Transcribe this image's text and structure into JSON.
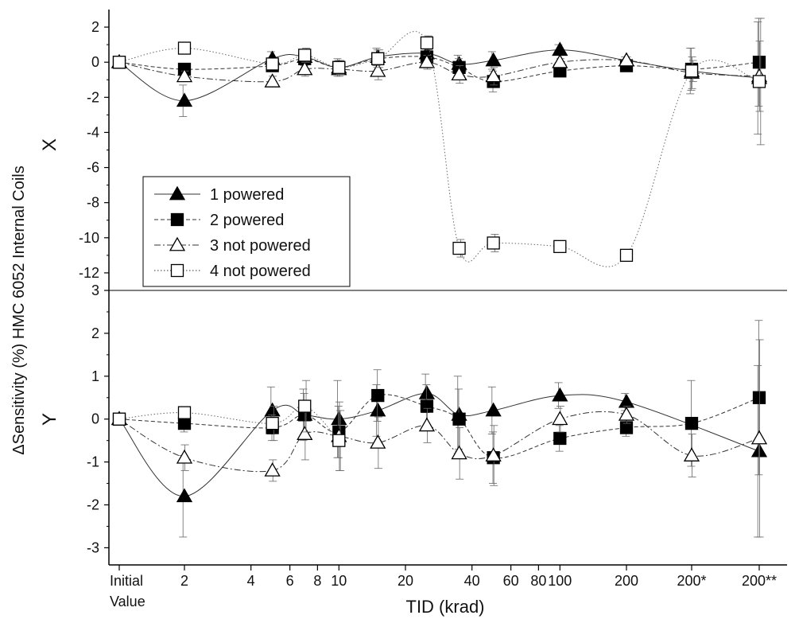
{
  "chart_data": {
    "type": "scatter",
    "title": "",
    "ylabel": "ΔSensitivity (%) HMC 6052 Internal Coils",
    "xlabel": "TID (krad)",
    "x_categories_top": [
      "Initial",
      "2",
      "4",
      "6",
      "8",
      "10",
      "20",
      "40",
      "60",
      "80",
      "100",
      "200",
      "200*",
      "200**"
    ],
    "x_category_bottom": "Value",
    "panels": [
      {
        "name": "X",
        "ylim": [
          -13,
          3
        ],
        "yticks": [
          2,
          0,
          -2,
          -4,
          -6,
          -8,
          -10,
          -12
        ],
        "ytick_labels": [
          "2",
          "0",
          "-2",
          "-4",
          "-6",
          "-8",
          "-10",
          "-12"
        ],
        "series": [
          {
            "name": "1 powered",
            "marker": "filled-triangle",
            "line": "solid",
            "points": [
              {
                "x": "Initial",
                "y": 0.0,
                "err": 0.1
              },
              {
                "x": "2",
                "y": -2.2,
                "err": 0.9
              },
              {
                "x": "5",
                "y": 0.2,
                "err": 0.4
              },
              {
                "x": "7",
                "y": 0.3,
                "err": 0.4
              },
              {
                "x": "10",
                "y": -0.3,
                "err": 0.5
              },
              {
                "x": "15",
                "y": 0.3,
                "err": 0.5
              },
              {
                "x": "25",
                "y": 0.5,
                "err": 0.5
              },
              {
                "x": "35",
                "y": -0.1,
                "err": 0.5
              },
              {
                "x": "50",
                "y": 0.1,
                "err": 0.5
              },
              {
                "x": "100",
                "y": 0.7,
                "err": 0.3
              },
              {
                "x": "200",
                "y": 0.1,
                "err": 0.2
              },
              {
                "x": "200*",
                "y": -0.5,
                "err": 1.3
              },
              {
                "x": "200**",
                "y": -0.9,
                "err": 3.2
              }
            ]
          },
          {
            "name": "2 powered",
            "marker": "filled-square",
            "line": "dashed",
            "points": [
              {
                "x": "Initial",
                "y": 0.0,
                "err": 0.1
              },
              {
                "x": "2",
                "y": -0.4,
                "err": 0.3
              },
              {
                "x": "5",
                "y": -0.2,
                "err": 0.3
              },
              {
                "x": "7",
                "y": 0.2,
                "err": 0.4
              },
              {
                "x": "10",
                "y": -0.3,
                "err": 0.4
              },
              {
                "x": "15",
                "y": 0.2,
                "err": 0.5
              },
              {
                "x": "25",
                "y": 0.3,
                "err": 0.5
              },
              {
                "x": "35",
                "y": -0.3,
                "err": 0.5
              },
              {
                "x": "50",
                "y": -1.1,
                "err": 0.6
              },
              {
                "x": "100",
                "y": -0.5,
                "err": 0.2
              },
              {
                "x": "200",
                "y": -0.2,
                "err": 0.2
              },
              {
                "x": "200*",
                "y": -0.4,
                "err": 1.2
              },
              {
                "x": "200**",
                "y": 0.0,
                "err": 2.5
              }
            ]
          },
          {
            "name": "3 not powered",
            "marker": "open-triangle",
            "line": "dashdot",
            "points": [
              {
                "x": "Initial",
                "y": 0.0,
                "err": 0.1
              },
              {
                "x": "2",
                "y": -0.8,
                "err": 0.3
              },
              {
                "x": "5",
                "y": -1.1,
                "err": 0.3
              },
              {
                "x": "7",
                "y": -0.4,
                "err": 0.4
              },
              {
                "x": "10",
                "y": -0.4,
                "err": 0.4
              },
              {
                "x": "15",
                "y": -0.5,
                "err": 0.5
              },
              {
                "x": "25",
                "y": 0.0,
                "err": 0.4
              },
              {
                "x": "35",
                "y": -0.7,
                "err": 0.5
              },
              {
                "x": "50",
                "y": -0.8,
                "err": 0.5
              },
              {
                "x": "100",
                "y": 0.0,
                "err": 0.2
              },
              {
                "x": "200",
                "y": 0.1,
                "err": 0.2
              },
              {
                "x": "200*",
                "y": -0.6,
                "err": 0.9
              },
              {
                "x": "200**",
                "y": -0.8,
                "err": 2.0
              }
            ]
          },
          {
            "name": "4 not powered",
            "marker": "open-square",
            "line": "dotted",
            "points": [
              {
                "x": "Initial",
                "y": 0.0,
                "err": 0.1
              },
              {
                "x": "2",
                "y": 0.8,
                "err": 0.2
              },
              {
                "x": "5",
                "y": -0.1,
                "err": 0.3
              },
              {
                "x": "7",
                "y": 0.4,
                "err": 0.4
              },
              {
                "x": "10",
                "y": -0.3,
                "err": 0.4
              },
              {
                "x": "15",
                "y": 0.2,
                "err": 0.5
              },
              {
                "x": "25",
                "y": 1.1,
                "err": 0.4
              },
              {
                "x": "35",
                "y": -10.6,
                "err": 0.5
              },
              {
                "x": "50",
                "y": -10.3,
                "err": 0.5
              },
              {
                "x": "100",
                "y": -10.5,
                "err": 0.2
              },
              {
                "x": "200",
                "y": -11.0,
                "err": 0.2
              },
              {
                "x": "200*",
                "y": -0.5,
                "err": 0.6
              },
              {
                "x": "200**",
                "y": -1.1,
                "err": 3.6
              }
            ]
          }
        ]
      },
      {
        "name": "Y",
        "ylim": [
          -3.4,
          3
        ],
        "yticks": [
          3,
          2,
          1,
          0,
          -1,
          -2,
          -3
        ],
        "ytick_labels": [
          "3",
          "2",
          "1",
          "0",
          "-1",
          "-2",
          "-3"
        ],
        "series": [
          {
            "name": "1 powered",
            "marker": "filled-triangle",
            "line": "solid",
            "points": [
              {
                "x": "Initial",
                "y": 0.0,
                "err": 0.05
              },
              {
                "x": "2",
                "y": -1.8,
                "err": 0.95
              },
              {
                "x": "5",
                "y": 0.2,
                "err": 0.55
              },
              {
                "x": "7",
                "y": 0.1,
                "err": 0.6
              },
              {
                "x": "10",
                "y": 0.0,
                "err": 0.9
              },
              {
                "x": "15",
                "y": 0.2,
                "err": 0.6
              },
              {
                "x": "25",
                "y": 0.6,
                "err": 0.45
              },
              {
                "x": "35",
                "y": 0.1,
                "err": 0.9
              },
              {
                "x": "50",
                "y": 0.2,
                "err": 0.55
              },
              {
                "x": "100",
                "y": 0.55,
                "err": 0.3
              },
              {
                "x": "200",
                "y": 0.4,
                "err": 0.2
              },
              {
                "x": "200**",
                "y": -0.75,
                "err": 2.0
              }
            ]
          },
          {
            "name": "2 powered",
            "marker": "filled-square",
            "line": "dashed",
            "points": [
              {
                "x": "Initial",
                "y": 0.0,
                "err": 0.05
              },
              {
                "x": "2",
                "y": -0.1,
                "err": 0.2
              },
              {
                "x": "5",
                "y": -0.2,
                "err": 0.3
              },
              {
                "x": "7",
                "y": 0.1,
                "err": 0.5
              },
              {
                "x": "10",
                "y": -0.3,
                "err": 0.6
              },
              {
                "x": "15",
                "y": 0.55,
                "err": 0.6
              },
              {
                "x": "25",
                "y": 0.3,
                "err": 0.5
              },
              {
                "x": "35",
                "y": 0.0,
                "err": 0.7
              },
              {
                "x": "50",
                "y": -0.9,
                "err": 0.6
              },
              {
                "x": "100",
                "y": -0.45,
                "err": 0.3
              },
              {
                "x": "200",
                "y": -0.2,
                "err": 0.2
              },
              {
                "x": "200*",
                "y": -0.1,
                "err": 1.0
              },
              {
                "x": "200**",
                "y": 0.5,
                "err": 1.8
              }
            ]
          },
          {
            "name": "3 not powered",
            "marker": "open-triangle",
            "line": "dashdot",
            "points": [
              {
                "x": "Initial",
                "y": 0.0,
                "err": 0.05
              },
              {
                "x": "2",
                "y": -0.9,
                "err": 0.3
              },
              {
                "x": "5",
                "y": -1.2,
                "err": 0.25
              },
              {
                "x": "7",
                "y": -0.35,
                "err": 0.6
              },
              {
                "x": "10",
                "y": -0.4,
                "err": 0.8
              },
              {
                "x": "15",
                "y": -0.55,
                "err": 0.6
              },
              {
                "x": "25",
                "y": -0.15,
                "err": 0.4
              },
              {
                "x": "35",
                "y": -0.8,
                "err": 0.6
              },
              {
                "x": "50",
                "y": -0.85,
                "err": 0.7
              },
              {
                "x": "100",
                "y": 0.0,
                "err": 0.3
              },
              {
                "x": "200",
                "y": 0.1,
                "err": 0.2
              },
              {
                "x": "200*",
                "y": -0.85,
                "err": 0.5
              },
              {
                "x": "200**",
                "y": -0.45,
                "err": 2.3
              }
            ]
          },
          {
            "name": "4 not powered",
            "marker": "open-square",
            "line": "dotted",
            "points": [
              {
                "x": "Initial",
                "y": 0.0,
                "err": 0.05
              },
              {
                "x": "2",
                "y": 0.15,
                "err": 0.1
              },
              {
                "x": "5",
                "y": -0.1,
                "err": 0.4
              },
              {
                "x": "7",
                "y": 0.3,
                "err": 0.6
              },
              {
                "x": "10",
                "y": -0.5,
                "err": 0.7
              }
            ]
          }
        ]
      }
    ],
    "legend": {
      "location": "inside-top-panel-left",
      "entries": [
        "1 powered",
        "2 powered",
        "3 not powered",
        "4 not powered"
      ]
    }
  }
}
